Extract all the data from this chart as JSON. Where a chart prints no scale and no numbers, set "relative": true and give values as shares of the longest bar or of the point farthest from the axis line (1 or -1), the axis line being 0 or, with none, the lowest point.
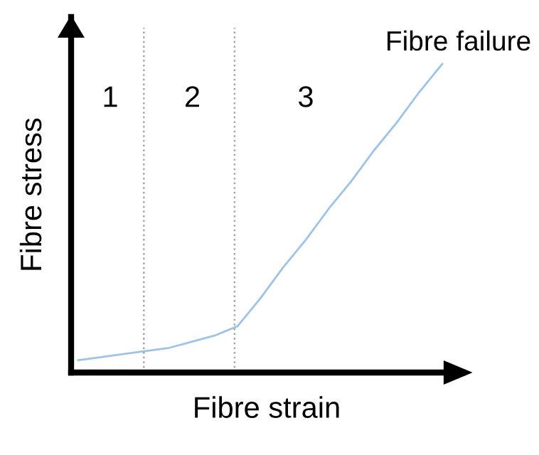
{
  "chart_data": {
    "type": "line",
    "relative": true,
    "xlabel": "Fibre strain",
    "ylabel": "Fibre stress",
    "categories": [
      null,
      null,
      null,
      null,
      null,
      null,
      null,
      null,
      null,
      null,
      null,
      null,
      null,
      null,
      null,
      null,
      null
    ],
    "series": [
      {
        "color": "#9dc3e6",
        "values": [
          0.04,
          0.05,
          0.06,
          0.07,
          0.08,
          0.1,
          0.12,
          0.15,
          0.24,
          0.34,
          0.43,
          0.53,
          0.62,
          0.72,
          0.81,
          0.91,
          1
        ]
      }
    ],
    "line_style": "solid",
    "annotations": [
      "1",
      "2",
      "3",
      "Fibre failure"
    ]
  }
}
